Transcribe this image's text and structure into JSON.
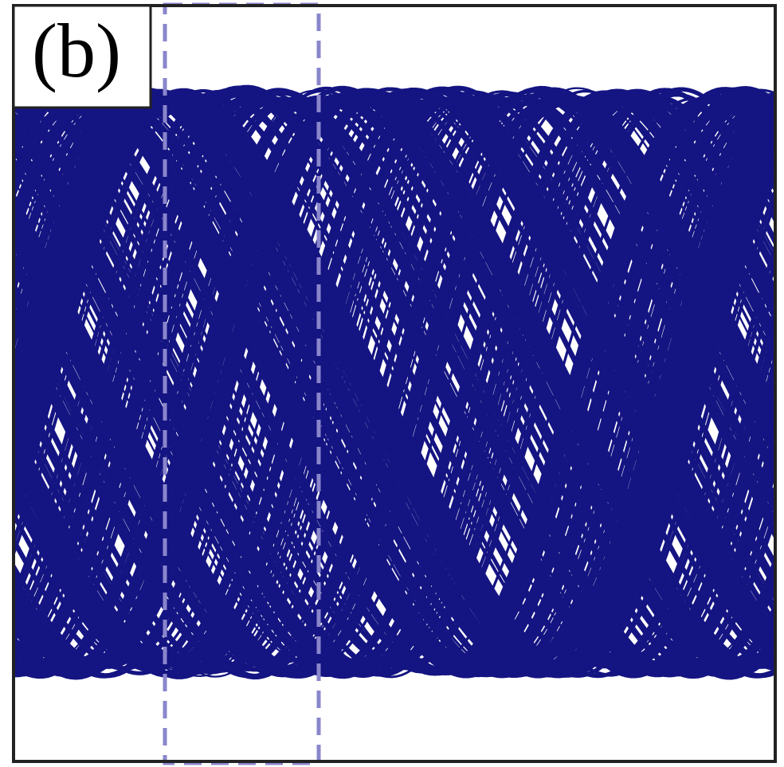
{
  "panel": {
    "label": "(b)"
  }
}
